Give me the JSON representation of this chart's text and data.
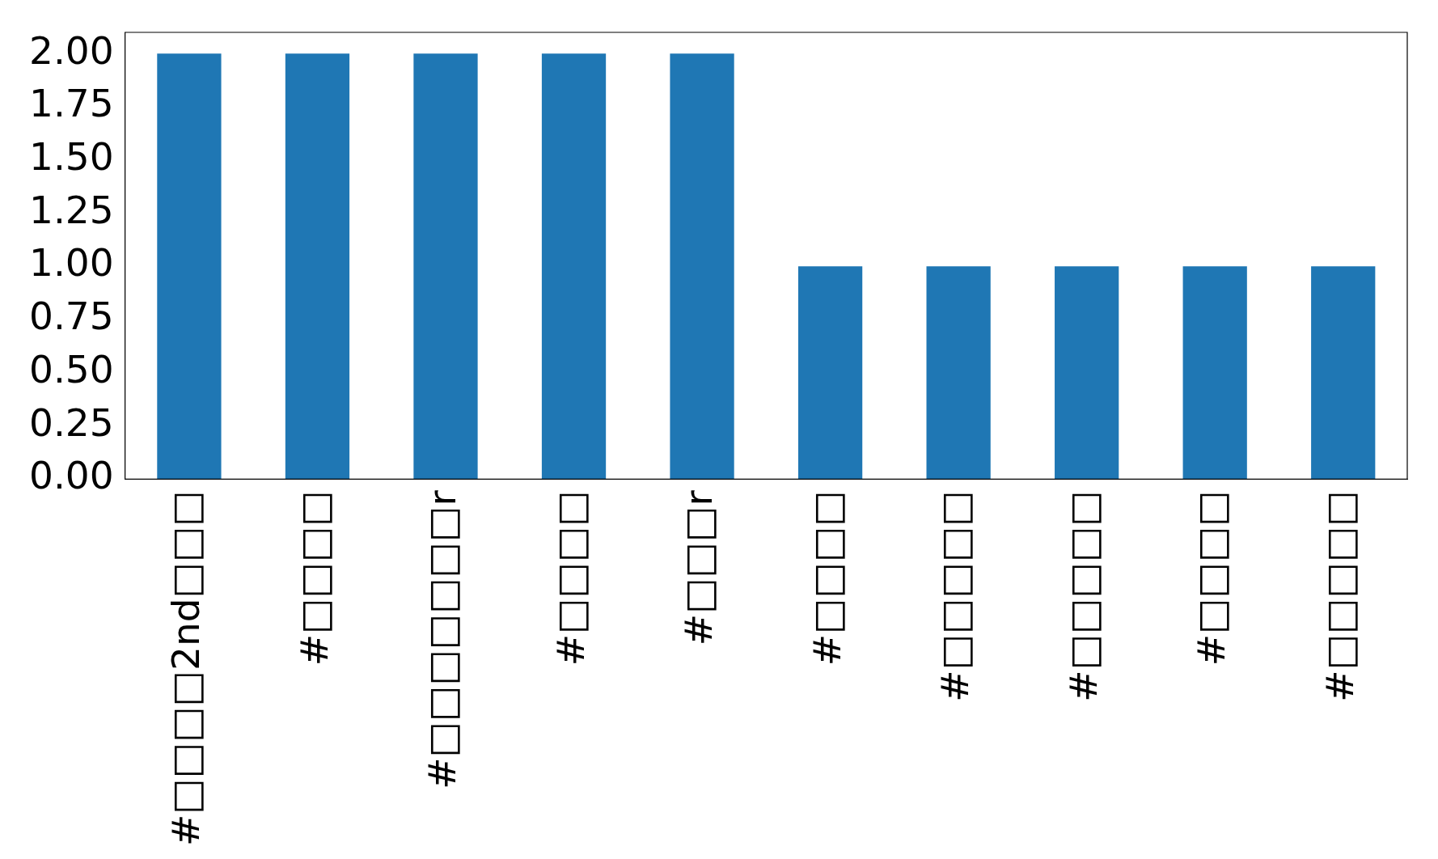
{
  "chart_data": {
    "type": "bar",
    "categories": [
      "#□□□□2nd□□□",
      "#□□□□",
      "#□□□□□□□r",
      "#□□□□",
      "#□□□r",
      "#□□□□",
      "#□□□□□",
      "#□□□□□",
      "#□□□□",
      "#□□□□□"
    ],
    "values": [
      2,
      2,
      2,
      2,
      2,
      1,
      1,
      1,
      1,
      1
    ],
    "color": "#1f77b4",
    "ylim": [
      0,
      2.1
    ],
    "yticks": [
      {
        "value": 0,
        "label": "0.00"
      },
      {
        "value": 0.25,
        "label": "0.25"
      },
      {
        "value": 0.5,
        "label": "0.50"
      },
      {
        "value": 0.75,
        "label": "0.75"
      },
      {
        "value": 1,
        "label": "1.00"
      },
      {
        "value": 1.25,
        "label": "1.25"
      },
      {
        "value": 1.5,
        "label": "1.50"
      },
      {
        "value": 1.75,
        "label": "1.75"
      },
      {
        "value": 2,
        "label": "2.00"
      }
    ],
    "grid": false,
    "legend": false
  }
}
